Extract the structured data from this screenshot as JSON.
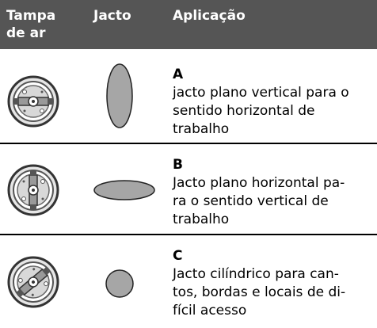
{
  "table": {
    "header": [
      [
        "Tampa",
        "de ar"
      ],
      [
        "Jacto"
      ],
      [
        "Aplicação"
      ]
    ],
    "rows": [
      {
        "letter": "A",
        "lines": [
          "jacto plano vertical para o",
          "sentido horizontal de",
          "trabalho"
        ]
      },
      {
        "letter": "B",
        "lines": [
          "Jacto plano horizontal pa-",
          "ra o sentido vertical de",
          "trabalho"
        ]
      },
      {
        "letter": "C",
        "lines": [
          "Jacto cilíndrico para can-",
          "tos, bordas e locais de di-",
          "fícil acesso"
        ]
      }
    ]
  }
}
